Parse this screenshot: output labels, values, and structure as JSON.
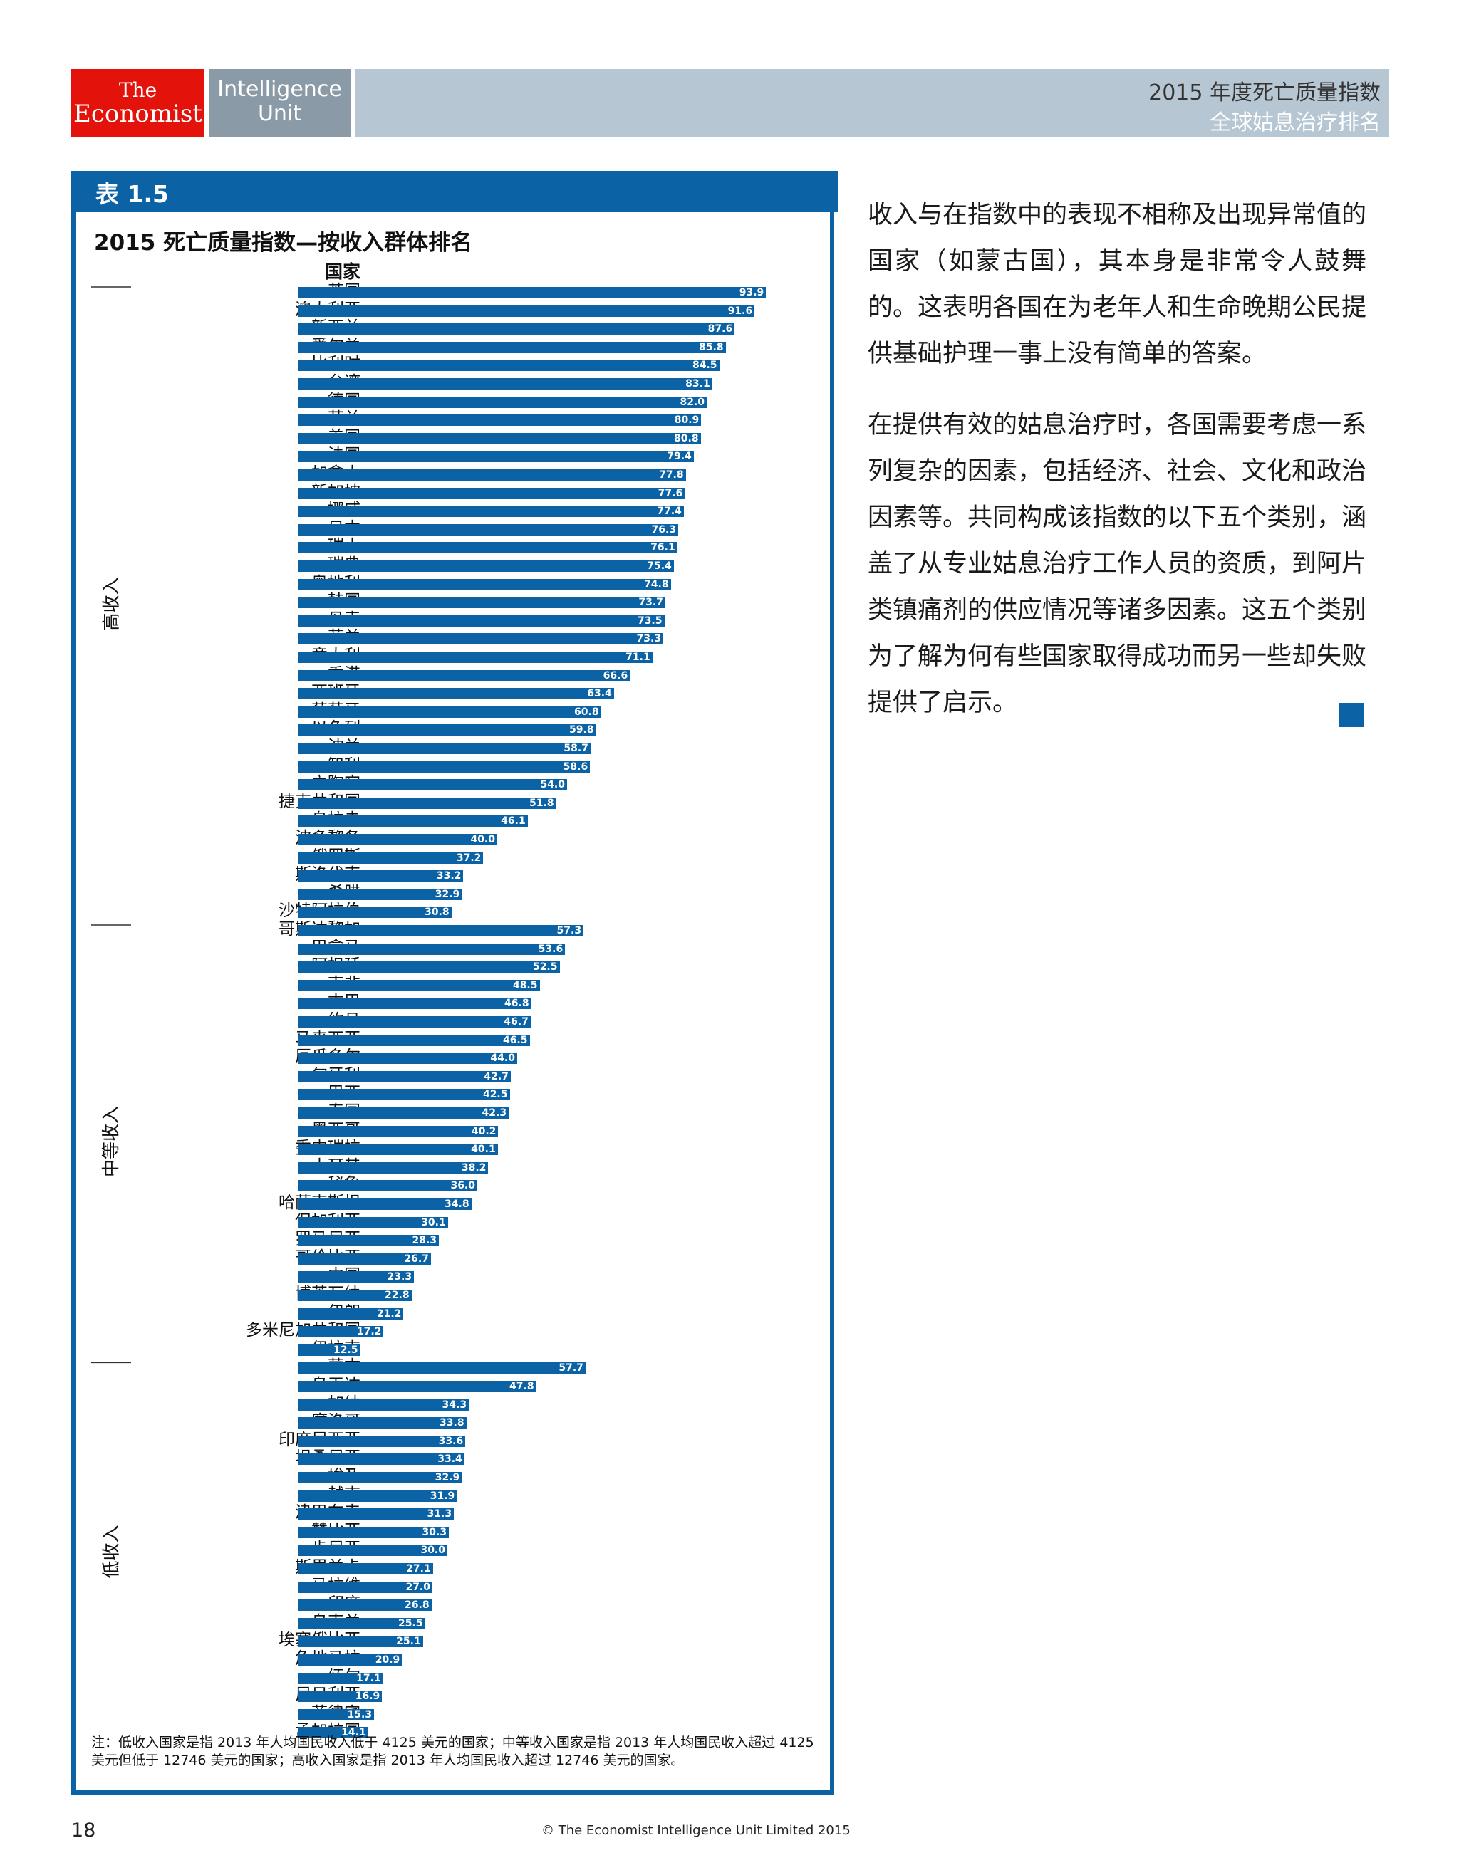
{
  "header": {
    "logo_the": "The",
    "logo_economist": "Economist",
    "logo_unit_line1": "Intelligence",
    "logo_unit_line2": "Unit",
    "banner_title": "2015 年度死亡质量指数",
    "banner_subtitle": "全球姑息治疗排名"
  },
  "colors": {
    "accent": "#0b62a4",
    "logo_red": "#e3120b",
    "banner": "#b6c6d2"
  },
  "chart_box": {
    "tab_label": "表 1.5",
    "title": "2015 死亡质量指数—按收入群体排名",
    "column_header": "国家",
    "note": "注：低收入国家是指 2013 年人均国民收入低于 4125 美元的国家；中等收入国家是指 2013 年人均国民收入超过 4125 美元但低于 12746 美元的国家；高收入国家是指 2013 年人均国民收入超过 12746 美元的国家。"
  },
  "chart_data": {
    "type": "bar",
    "orientation": "horizontal",
    "title": "2015 死亡质量指数—按收入群体排名",
    "xlim": [
      0,
      100
    ],
    "groups": [
      {
        "label": "高收入",
        "categories": [
          "英国",
          "澳大利亚",
          "新西兰",
          "爱尔兰",
          "比利时",
          "台湾",
          "德国",
          "荷兰",
          "美国",
          "法国",
          "加拿大",
          "新加坡",
          "挪威",
          "日本",
          "瑞士",
          "瑞典",
          "奥地利",
          "韩国",
          "丹麦",
          "芬兰",
          "意大利",
          "香港",
          "西班牙",
          "葡萄牙",
          "以色列",
          "波兰",
          "智利",
          "立陶宛",
          "捷克共和国",
          "乌拉圭",
          "波多黎各",
          "俄罗斯",
          "斯洛伐克",
          "希腊",
          "沙特阿拉伯"
        ],
        "values": [
          93.9,
          91.6,
          87.6,
          85.8,
          84.5,
          83.1,
          82.0,
          80.9,
          80.8,
          79.4,
          77.8,
          77.6,
          77.4,
          76.3,
          76.1,
          75.4,
          74.8,
          73.7,
          73.5,
          73.3,
          71.1,
          66.6,
          63.4,
          60.8,
          59.8,
          58.7,
          58.6,
          54.0,
          51.8,
          46.1,
          40.0,
          37.2,
          33.2,
          32.9,
          30.8
        ]
      },
      {
        "label": "中等收入",
        "categories": [
          "哥斯达黎加",
          "巴拿马",
          "阿根廷",
          "南非",
          "古巴",
          "约旦",
          "马来西亚",
          "厄瓜多尔",
          "匈牙利",
          "巴西",
          "泰国",
          "墨西哥",
          "委内瑞拉",
          "土耳其",
          "秘鲁",
          "哈萨克斯坦",
          "保加利亚",
          "罗马尼亚",
          "哥伦比亚",
          "中国",
          "博茨瓦纳",
          "伊朗",
          "多米尼加共和国",
          "伊拉克"
        ],
        "values": [
          57.3,
          53.6,
          52.5,
          48.5,
          46.8,
          46.7,
          46.5,
          44.0,
          42.7,
          42.5,
          42.3,
          40.2,
          40.1,
          38.2,
          36.0,
          34.8,
          30.1,
          28.3,
          26.7,
          23.3,
          22.8,
          21.2,
          17.2,
          12.5
        ]
      },
      {
        "label": "低收入",
        "categories": [
          "蒙古",
          "乌干达",
          "加纳",
          "摩洛哥",
          "印度尼西亚",
          "坦桑尼亚",
          "埃及",
          "越南",
          "津巴布韦",
          "赞比亚",
          "肯尼亚",
          "斯里兰卡",
          "马拉维",
          "印度",
          "乌克兰",
          "埃塞俄比亚",
          "危地马拉",
          "缅甸",
          "尼日利亚",
          "菲律宾",
          "孟加拉国"
        ],
        "values": [
          57.7,
          47.8,
          34.3,
          33.8,
          33.6,
          33.4,
          32.9,
          31.9,
          31.3,
          30.3,
          30.0,
          27.1,
          27.0,
          26.8,
          25.5,
          25.1,
          20.9,
          17.1,
          16.9,
          15.3,
          14.1
        ]
      }
    ]
  },
  "body_text": {
    "p1": "收入与在指数中的表现不相称及出现异常值的国家（如蒙古国），其本身是非常令人鼓舞的。这表明各国在为老年人和生命晚期公民提供基础护理一事上没有简单的答案。",
    "p2": "在提供有效的姑息治疗时，各国需要考虑一系列复杂的因素，包括经济、社会、文化和政治因素等。共同构成该指数的以下五个类别，涵盖了从专业姑息治疗工作人员的资质，到阿片类镇痛剂的供应情况等诸多因素。这五个类别为了解为何有些国家取得成功而另一些却失败提供了启示。"
  },
  "footer": {
    "page_number": "18",
    "copyright": "© The Economist Intelligence Unit Limited 2015"
  }
}
